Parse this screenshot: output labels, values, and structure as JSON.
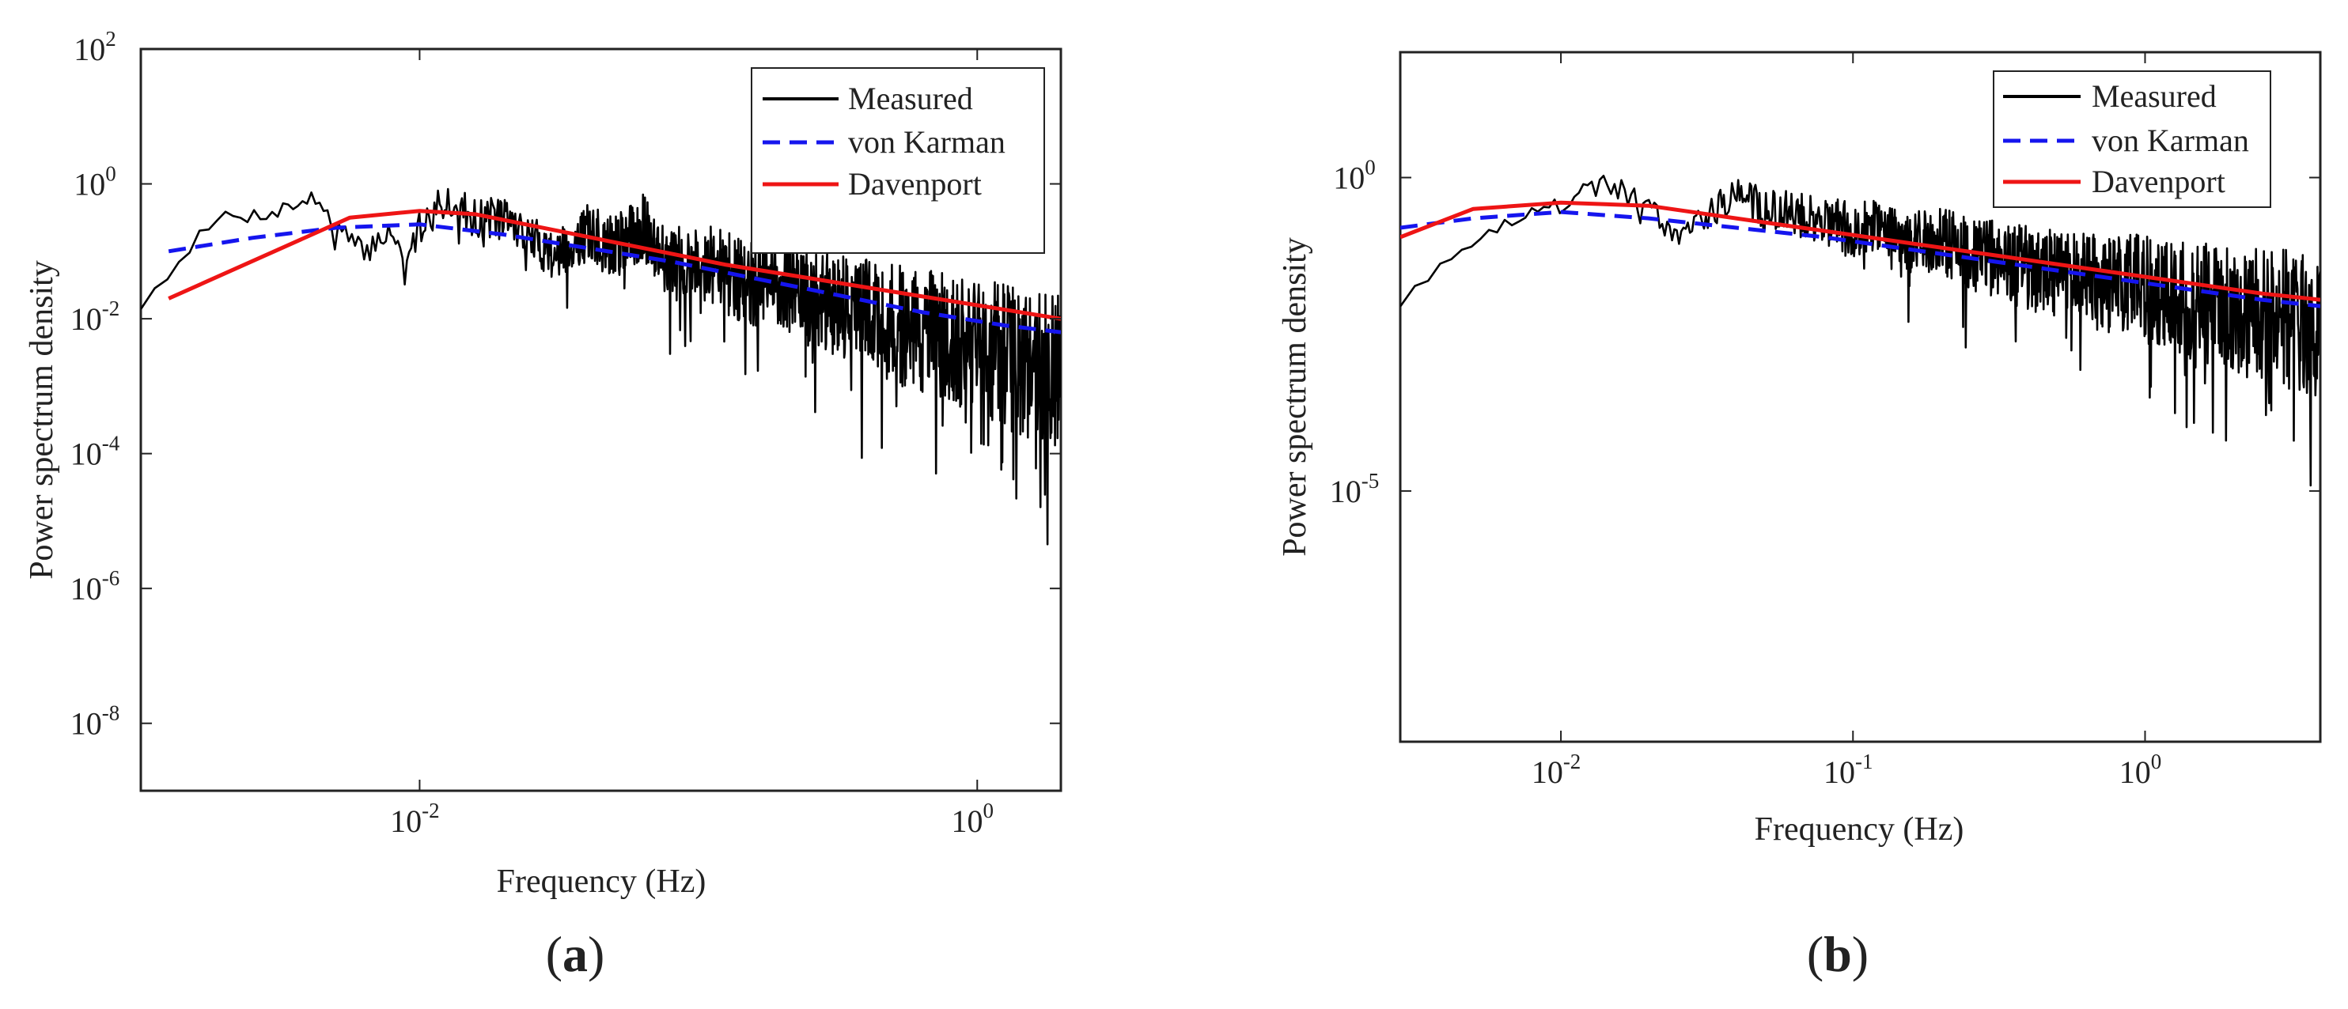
{
  "chart_data": [
    {
      "type": "line",
      "panel_label_open": "(",
      "panel_label_letter": "a",
      "panel_label_close": ")",
      "xlabel": "Frequency (Hz)",
      "ylabel": "Power spectrum density",
      "xscale": "log",
      "yscale": "log",
      "xlim_log10": [
        -3.0,
        0.3
      ],
      "ylim_log10": [
        -9,
        2
      ],
      "x_ticks": [
        {
          "base": "10",
          "exp": "-2",
          "log10_value": -2
        },
        {
          "base": "10",
          "exp": "0",
          "log10_value": 0
        }
      ],
      "y_ticks": [
        {
          "base": "10",
          "exp": "2",
          "log10_value": 2
        },
        {
          "base": "10",
          "exp": "0",
          "log10_value": 0
        },
        {
          "base": "10",
          "exp": "-2",
          "log10_value": -2
        },
        {
          "base": "10",
          "exp": "-4",
          "log10_value": -4
        },
        {
          "base": "10",
          "exp": "-6",
          "log10_value": -6
        },
        {
          "base": "10",
          "exp": "-8",
          "log10_value": -8
        }
      ],
      "legend_position": "top-right",
      "series": [
        {
          "name": "Measured",
          "color": "#000000",
          "dash": "solid",
          "generator": "noisy",
          "seed": 7,
          "points_log10": [
            [
              -3.0,
              -1.8
            ],
            [
              -2.9,
              -1.3
            ],
            [
              -2.8,
              -0.8
            ],
            [
              -2.7,
              -0.45
            ],
            [
              -2.6,
              -0.45
            ],
            [
              -2.5,
              -0.35
            ],
            [
              -2.4,
              -0.2
            ],
            [
              -2.35,
              -0.25
            ],
            [
              -2.3,
              -0.6
            ],
            [
              -2.2,
              -1.0
            ],
            [
              -2.1,
              -0.6
            ],
            [
              -2.05,
              -1.3
            ],
            [
              -2.0,
              -0.6
            ],
            [
              -1.9,
              -0.15
            ],
            [
              -1.8,
              -0.45
            ],
            [
              -1.7,
              -0.4
            ],
            [
              -1.6,
              -0.75
            ],
            [
              -1.5,
              -1.0
            ],
            [
              -1.4,
              -0.65
            ],
            [
              -1.3,
              -0.85
            ],
            [
              -1.2,
              -0.55
            ],
            [
              -1.1,
              -1.1
            ],
            [
              -1.0,
              -1.0
            ],
            [
              -0.9,
              -1.2
            ],
            [
              -0.8,
              -1.4
            ],
            [
              -0.7,
              -1.3
            ],
            [
              -0.6,
              -1.6
            ],
            [
              -0.5,
              -1.6
            ],
            [
              -0.4,
              -1.7
            ],
            [
              -0.3,
              -1.9
            ],
            [
              -0.2,
              -2.0
            ],
            [
              -0.1,
              -2.1
            ],
            [
              0.0,
              -2.2
            ],
            [
              0.1,
              -2.35
            ],
            [
              0.2,
              -2.45
            ],
            [
              0.3,
              -2.5
            ]
          ]
        },
        {
          "name": "von Karman",
          "color": "#1515ee",
          "dash": "dashed",
          "generator": "smooth",
          "points_log10": [
            [
              -2.9,
              -1.0
            ],
            [
              -2.6,
              -0.8
            ],
            [
              -2.3,
              -0.65
            ],
            [
              -2.0,
              -0.6
            ],
            [
              -1.7,
              -0.75
            ],
            [
              -1.4,
              -0.95
            ],
            [
              -1.1,
              -1.15
            ],
            [
              -0.8,
              -1.4
            ],
            [
              -0.5,
              -1.65
            ],
            [
              -0.2,
              -1.9
            ],
            [
              0.1,
              -2.1
            ],
            [
              0.3,
              -2.2
            ]
          ]
        },
        {
          "name": "Davenport",
          "color": "#ee1515",
          "dash": "solid",
          "generator": "smooth",
          "points_log10": [
            [
              -2.9,
              -1.7
            ],
            [
              -2.25,
              -0.5
            ],
            [
              -2.0,
              -0.4
            ],
            [
              -1.8,
              -0.45
            ],
            [
              -1.5,
              -0.7
            ],
            [
              -1.2,
              -0.95
            ],
            [
              -0.9,
              -1.2
            ],
            [
              -0.6,
              -1.4
            ],
            [
              -0.3,
              -1.6
            ],
            [
              0.0,
              -1.8
            ],
            [
              0.3,
              -2.0
            ]
          ]
        }
      ]
    },
    {
      "type": "line",
      "panel_label_open": "(",
      "panel_label_letter": "b",
      "panel_label_close": ")",
      "xlabel": "Frequency (Hz)",
      "ylabel": "Power spectrum density",
      "xscale": "log",
      "yscale": "log",
      "xlim_log10": [
        -2.55,
        0.6
      ],
      "ylim_log10": [
        -9,
        2
      ],
      "x_ticks": [
        {
          "base": "10",
          "exp": "-2",
          "log10_value": -2
        },
        {
          "base": "10",
          "exp": "-1",
          "log10_value": -1
        },
        {
          "base": "10",
          "exp": "0",
          "log10_value": 0
        }
      ],
      "y_ticks": [
        {
          "base": "10",
          "exp": "0",
          "log10_value": 0
        },
        {
          "base": "10",
          "exp": "-5",
          "log10_value": -5
        }
      ],
      "legend_position": "top-right",
      "series": [
        {
          "name": "Measured",
          "color": "#000000",
          "dash": "solid",
          "generator": "noisy",
          "seed": 19,
          "points_log10": [
            [
              -2.55,
              -2.0
            ],
            [
              -2.4,
              -1.3
            ],
            [
              -2.2,
              -0.7
            ],
            [
              -2.0,
              -0.4
            ],
            [
              -1.85,
              -0.05
            ],
            [
              -1.7,
              -0.35
            ],
            [
              -1.6,
              -0.9
            ],
            [
              -1.5,
              -0.5
            ],
            [
              -1.4,
              -0.2
            ],
            [
              -1.3,
              -0.45
            ],
            [
              -1.2,
              -0.5
            ],
            [
              -1.1,
              -0.6
            ],
            [
              -1.0,
              -0.75
            ],
            [
              -0.9,
              -0.6
            ],
            [
              -0.8,
              -0.95
            ],
            [
              -0.7,
              -0.9
            ],
            [
              -0.6,
              -1.1
            ],
            [
              -0.5,
              -1.2
            ],
            [
              -0.4,
              -1.3
            ],
            [
              -0.3,
              -1.35
            ],
            [
              -0.2,
              -1.45
            ],
            [
              -0.1,
              -1.55
            ],
            [
              0.0,
              -1.6
            ],
            [
              0.1,
              -1.75
            ],
            [
              0.2,
              -1.8
            ],
            [
              0.3,
              -1.9
            ],
            [
              0.4,
              -2.0
            ],
            [
              0.5,
              -2.05
            ],
            [
              0.6,
              -2.1
            ]
          ]
        },
        {
          "name": "von Karman",
          "color": "#1515ee",
          "dash": "dashed",
          "generator": "smooth",
          "points_log10": [
            [
              -2.55,
              -0.8
            ],
            [
              -2.3,
              -0.65
            ],
            [
              -2.0,
              -0.55
            ],
            [
              -1.7,
              -0.65
            ],
            [
              -1.4,
              -0.8
            ],
            [
              -1.1,
              -0.95
            ],
            [
              -0.8,
              -1.15
            ],
            [
              -0.5,
              -1.35
            ],
            [
              -0.2,
              -1.55
            ],
            [
              0.1,
              -1.75
            ],
            [
              0.4,
              -1.95
            ],
            [
              0.6,
              -2.05
            ]
          ]
        },
        {
          "name": "Davenport",
          "color": "#ee1515",
          "dash": "solid",
          "generator": "smooth",
          "points_log10": [
            [
              -2.55,
              -0.95
            ],
            [
              -2.3,
              -0.5
            ],
            [
              -2.0,
              -0.4
            ],
            [
              -1.7,
              -0.45
            ],
            [
              -1.4,
              -0.65
            ],
            [
              -1.1,
              -0.85
            ],
            [
              -0.8,
              -1.05
            ],
            [
              -0.5,
              -1.25
            ],
            [
              -0.2,
              -1.45
            ],
            [
              0.1,
              -1.65
            ],
            [
              0.4,
              -1.85
            ],
            [
              0.6,
              -1.95
            ]
          ]
        }
      ]
    }
  ]
}
